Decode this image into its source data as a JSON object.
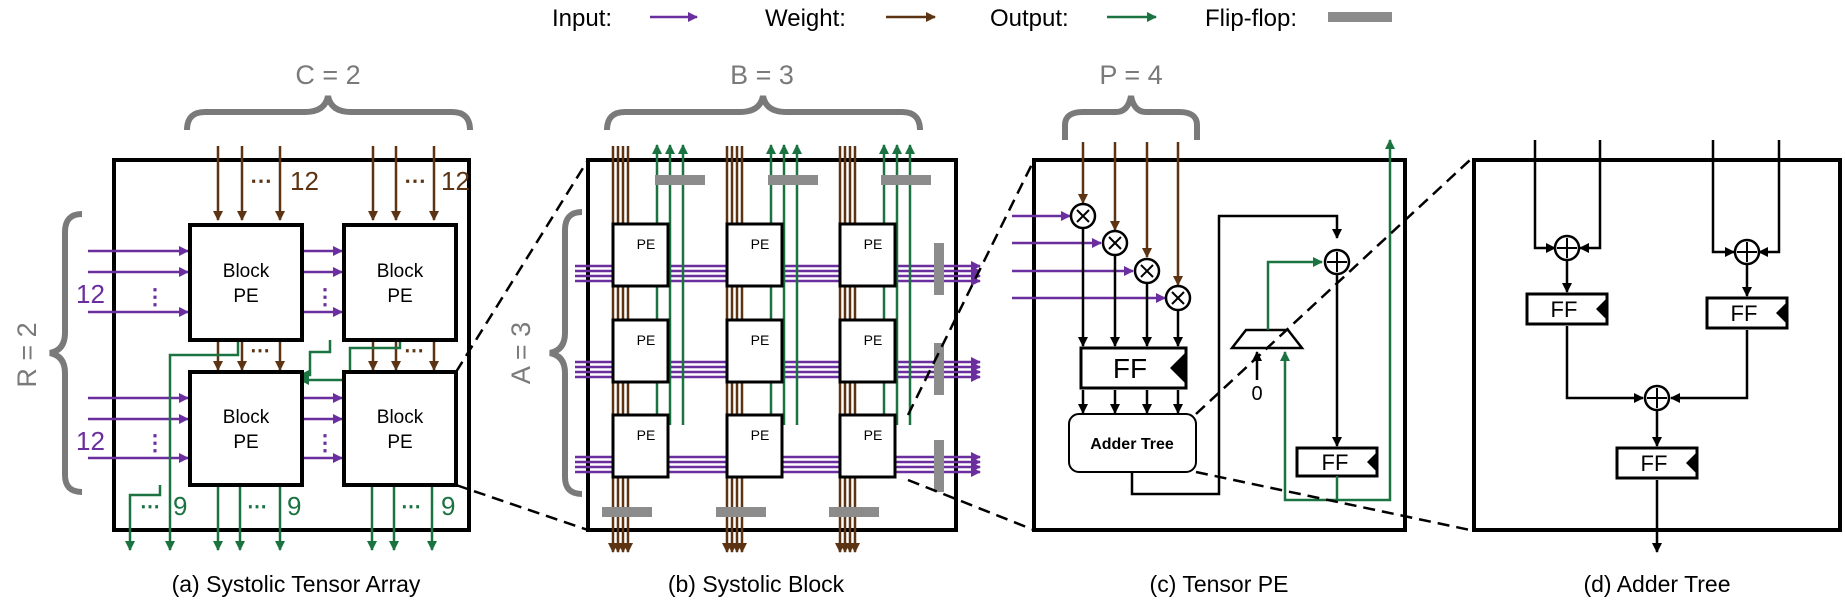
{
  "legend": {
    "input_label": "Input:",
    "weight_label": "Weight:",
    "output_label": "Output:",
    "flipflop_label": "Flip-flop:"
  },
  "colors": {
    "input": "#6b2e9e",
    "weight": "#5c3413",
    "output": "#1a7340",
    "flipflop": "#8c8c8c",
    "outline": "#000000",
    "brace": "#7a7a7a"
  },
  "panel_a": {
    "brace_label": "C = 2",
    "side_label": "R = 2",
    "block_line1": "Block",
    "block_line2": "PE",
    "weight_count": "12",
    "input_count": "12",
    "output_count": "9",
    "caption": "(a) Systolic Tensor Array"
  },
  "panel_b": {
    "brace_label": "B = 3",
    "side_label": "A = 3",
    "pe_label": "PE",
    "caption": "(b) Systolic Block"
  },
  "panel_c": {
    "brace_label": "P = 4",
    "ff_label": "FF",
    "adder_label": "Adder Tree",
    "mux_zero": "0",
    "caption": "(c) Tensor PE"
  },
  "panel_d": {
    "ff_label": "FF",
    "caption": "(d) Adder Tree"
  }
}
